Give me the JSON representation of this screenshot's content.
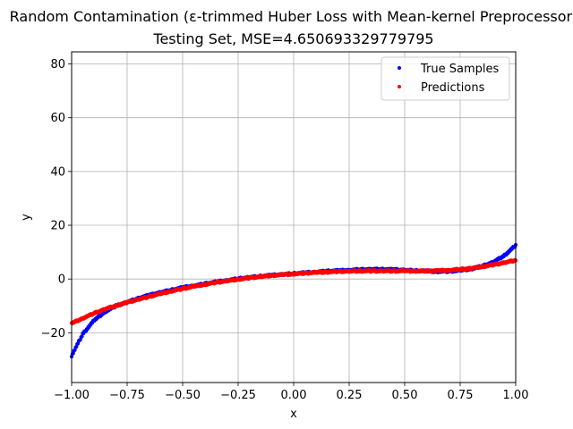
{
  "chart_data": {
    "type": "scatter",
    "title": "Random Contamination (ε-trimmed Huber Loss with Mean-kernel Preprocessor)",
    "subtitle": "Testing Set, MSE=4.650693329779795",
    "xlabel": "x",
    "ylabel": "y",
    "xlim": [
      -1.0,
      1.0
    ],
    "ylim": [
      -38.5,
      84.5
    ],
    "grid": true,
    "legend_position": "top-right",
    "x_ticks": [
      -1.0,
      -0.75,
      -0.5,
      -0.25,
      0.0,
      0.25,
      0.5,
      0.75,
      1.0
    ],
    "x_tick_labels": [
      "−1.00",
      "−0.75",
      "−0.50",
      "−0.25",
      "0.00",
      "0.25",
      "0.50",
      "0.75",
      "1.00"
    ],
    "y_ticks": [
      -20,
      0,
      20,
      40,
      60,
      80
    ],
    "y_tick_labels": [
      "−20",
      "0",
      "20",
      "40",
      "60",
      "80"
    ],
    "series": [
      {
        "name": "True Samples",
        "color": "#0000ff",
        "x": [
          -1.0,
          -0.95,
          -0.9,
          -0.85,
          -0.8,
          -0.75,
          -0.7,
          -0.65,
          -0.6,
          -0.55,
          -0.5,
          -0.45,
          -0.4,
          -0.35,
          -0.3,
          -0.25,
          -0.2,
          -0.15,
          -0.1,
          -0.05,
          0.0,
          0.05,
          0.1,
          0.15,
          0.2,
          0.25,
          0.3,
          0.35,
          0.4,
          0.45,
          0.5,
          0.55,
          0.6,
          0.65,
          0.7,
          0.75,
          0.8,
          0.85,
          0.9,
          0.95,
          1.0
        ],
        "y": [
          -28.5,
          -20.5,
          -15.5,
          -12.2,
          -10.0,
          -8.6,
          -7.2,
          -6.0,
          -5.0,
          -4.1,
          -3.2,
          -2.5,
          -1.8,
          -1.1,
          -0.5,
          0.1,
          0.6,
          1.0,
          1.4,
          1.7,
          2.0,
          2.3,
          2.6,
          2.9,
          3.1,
          3.3,
          3.5,
          3.6,
          3.6,
          3.5,
          3.3,
          3.1,
          2.9,
          2.8,
          2.9,
          3.2,
          3.8,
          4.8,
          6.3,
          8.8,
          12.5
        ]
      },
      {
        "name": "Predictions",
        "color": "#ff0000",
        "x": [
          -1.0,
          -0.95,
          -0.9,
          -0.85,
          -0.8,
          -0.75,
          -0.7,
          -0.65,
          -0.6,
          -0.55,
          -0.5,
          -0.45,
          -0.4,
          -0.35,
          -0.3,
          -0.25,
          -0.2,
          -0.15,
          -0.1,
          -0.05,
          0.0,
          0.05,
          0.1,
          0.15,
          0.2,
          0.25,
          0.3,
          0.35,
          0.4,
          0.45,
          0.5,
          0.55,
          0.6,
          0.65,
          0.7,
          0.75,
          0.8,
          0.85,
          0.9,
          0.95,
          1.0
        ],
        "y": [
          -16.5,
          -14.6,
          -12.8,
          -11.2,
          -9.9,
          -8.7,
          -7.6,
          -6.5,
          -5.5,
          -4.5,
          -3.6,
          -2.8,
          -2.0,
          -1.3,
          -0.7,
          -0.1,
          0.4,
          0.9,
          1.3,
          1.6,
          1.9,
          2.2,
          2.4,
          2.6,
          2.8,
          2.9,
          3.0,
          3.0,
          3.0,
          3.0,
          3.0,
          3.0,
          3.0,
          3.1,
          3.3,
          3.6,
          4.0,
          4.6,
          5.3,
          6.1,
          7.0
        ]
      }
    ]
  }
}
